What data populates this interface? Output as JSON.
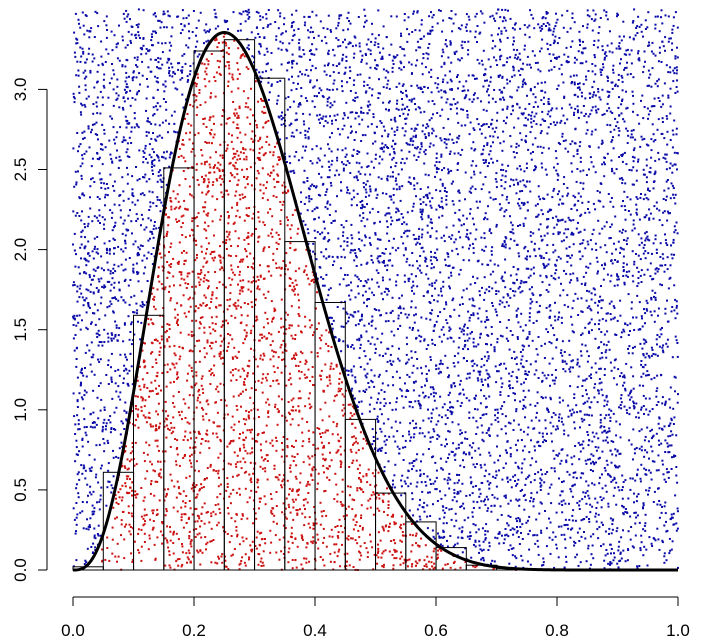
{
  "chart_data": {
    "type": "histogram_with_density_and_scatter",
    "title": "",
    "xlabel": "",
    "ylabel": "",
    "xlim": [
      0.0,
      1.0
    ],
    "ylim": [
      0.0,
      3.5
    ],
    "x_ticks": [
      "0.0",
      "0.2",
      "0.4",
      "0.6",
      "0.8",
      "1.0"
    ],
    "y_ticks": [
      "0.0",
      "0.5",
      "1.0",
      "1.5",
      "2.0",
      "2.5",
      "3.0"
    ],
    "histogram": {
      "bin_width": 0.05,
      "bin_starts": [
        0.0,
        0.05,
        0.1,
        0.15,
        0.2,
        0.25,
        0.3,
        0.35,
        0.4,
        0.45,
        0.5,
        0.55,
        0.6,
        0.65,
        0.7
      ],
      "heights": [
        0.02,
        0.61,
        1.59,
        2.51,
        3.24,
        3.31,
        3.07,
        2.05,
        1.67,
        0.94,
        0.48,
        0.3,
        0.14,
        0.03,
        0.01
      ]
    },
    "density_curve": {
      "distribution": "beta",
      "alpha": 4,
      "beta": 10,
      "color": "#000000"
    },
    "scatter": {
      "accepted_color": "#cc1111",
      "rejected_color": "#0a0aa8",
      "ymax": 3.5
    },
    "grid": false,
    "legend": "none"
  }
}
